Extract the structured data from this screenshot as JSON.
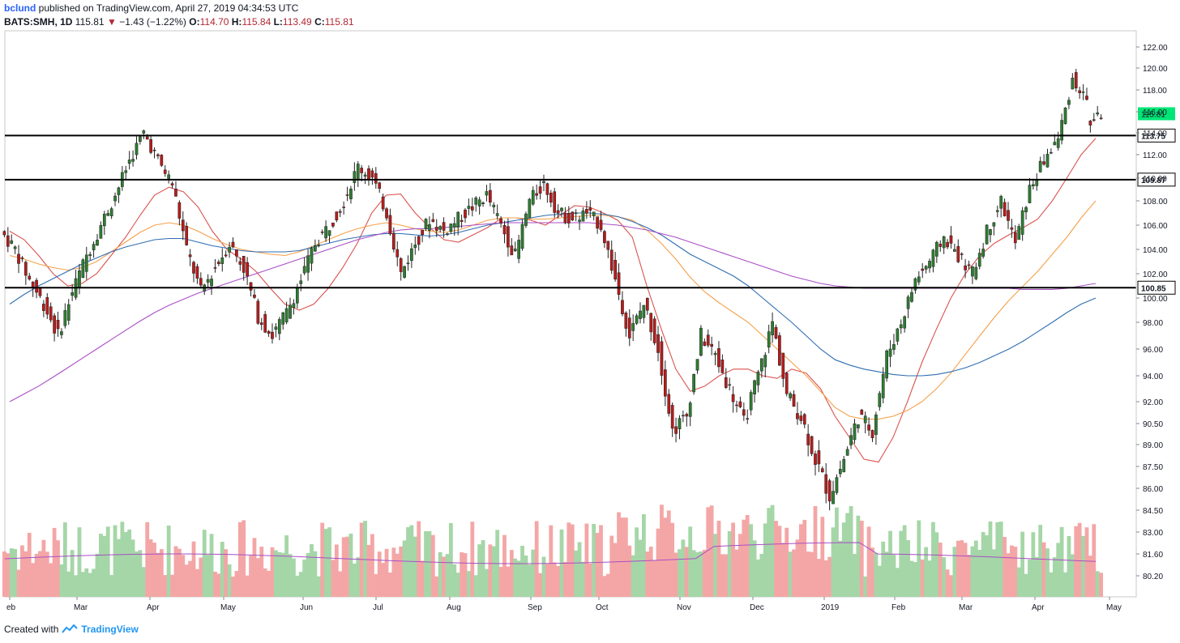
{
  "header": {
    "author": "bclund",
    "published_text": "published on TradingView.com, April 27, 2019 04:34:53 UTC",
    "symbol": "BATS:SMH, 1D",
    "last": "115.81",
    "change_arrow": "▼",
    "change": "−1.43 (−1.22%)",
    "open_label": "O:",
    "open": "114.70",
    "high_label": "H:",
    "high": "115.84",
    "low_label": "L:",
    "low": "113.49",
    "close_label": "C:",
    "close": "115.81"
  },
  "footer": {
    "created_with": "Created with",
    "brand": "TradingView"
  },
  "colors": {
    "up": "#2e7d32",
    "down": "#b71c1c",
    "vol_up": "#a5d6a7",
    "vol_down": "#f4a6a6",
    "ma_red": "#d9534f",
    "ma_orange": "#f5a04a",
    "ma_blue": "#2f6db3",
    "ma_purple": "#a94ec6",
    "price_tag": "#00e676"
  },
  "chart_data": {
    "type": "candlestick",
    "x_axis": [
      "eb",
      "Mar",
      "Apr",
      "May",
      "Jun",
      "Jul",
      "Aug",
      "Sep",
      "Oct",
      "Nov",
      "Dec",
      "2019",
      "Feb",
      "Mar",
      "Apr",
      "May"
    ],
    "y_axis_ticks": [
      "122.00",
      "120.00",
      "118.00",
      "116.00",
      "114.00",
      "112.00",
      "110.00",
      "108.00",
      "106.00",
      "104.00",
      "102.00",
      "100.00",
      "98.00",
      "96.00",
      "94.00",
      "92.00",
      "90.50",
      "89.00",
      "87.50",
      "86.00",
      "84.50",
      "83.00",
      "81.60",
      "80.20"
    ],
    "horizontal_lines": [
      {
        "value": 113.75,
        "label": "113.75"
      },
      {
        "value": 109.87,
        "label": "109.87"
      },
      {
        "value": 100.85,
        "label": "100.85"
      }
    ],
    "last_price": {
      "value": 115.81,
      "label": "115.81"
    },
    "candles_weekly_approx": [
      [
        105.5,
        104.0
      ],
      [
        104.0,
        101.5
      ],
      [
        101.5,
        99.5
      ],
      [
        99.5,
        97.0
      ],
      [
        97.0,
        100.5
      ],
      [
        100.5,
        103.5
      ],
      [
        103.5,
        106.0
      ],
      [
        106.0,
        108.5
      ],
      [
        108.5,
        111.5
      ],
      [
        111.5,
        114.0
      ],
      [
        114.0,
        111.5
      ],
      [
        111.5,
        109.5
      ],
      [
        109.5,
        104.0
      ],
      [
        104.0,
        100.5
      ],
      [
        100.5,
        102.5
      ],
      [
        102.5,
        104.5
      ],
      [
        104.5,
        102.5
      ],
      [
        102.5,
        98.5
      ],
      [
        98.5,
        97.0
      ],
      [
        97.0,
        98.8
      ],
      [
        98.8,
        101.5
      ],
      [
        101.5,
        104.5
      ],
      [
        104.5,
        106.0
      ],
      [
        106.0,
        108.0
      ],
      [
        108.0,
        111.0
      ],
      [
        111.0,
        110.0
      ],
      [
        110.0,
        107.0
      ],
      [
        107.0,
        102.0
      ],
      [
        102.0,
        104.5
      ],
      [
        104.5,
        106.5
      ],
      [
        106.5,
        105.5
      ],
      [
        105.5,
        106.5
      ],
      [
        106.5,
        107.5
      ],
      [
        107.5,
        108.5
      ],
      [
        108.5,
        106.0
      ],
      [
        106.0,
        103.5
      ],
      [
        103.5,
        108.0
      ],
      [
        108.0,
        109.5
      ],
      [
        109.5,
        107.0
      ],
      [
        107.0,
        106.5
      ],
      [
        106.5,
        107.0
      ],
      [
        107.0,
        106.0
      ],
      [
        106.0,
        101.5
      ],
      [
        101.5,
        97.0
      ],
      [
        97.0,
        99.5
      ],
      [
        99.5,
        96.0
      ],
      [
        96.0,
        90.0
      ],
      [
        90.0,
        91.0
      ],
      [
        91.0,
        97.0
      ],
      [
        97.0,
        95.5
      ],
      [
        95.5,
        93.0
      ],
      [
        93.0,
        90.5
      ],
      [
        90.5,
        94.0
      ],
      [
        94.0,
        98.0
      ],
      [
        98.0,
        92.5
      ],
      [
        92.5,
        91.0
      ],
      [
        91.0,
        88.0
      ],
      [
        88.0,
        85.5
      ],
      [
        85.5,
        88.0
      ],
      [
        88.0,
        91.0
      ],
      [
        91.0,
        90.0
      ],
      [
        90.0,
        95.5
      ],
      [
        95.5,
        98.0
      ],
      [
        98.0,
        101.5
      ],
      [
        101.5,
        103.0
      ],
      [
        103.0,
        105.0
      ],
      [
        105.0,
        103.5
      ],
      [
        103.5,
        102.0
      ],
      [
        102.0,
        105.5
      ],
      [
        105.5,
        108.0
      ],
      [
        108.0,
        104.5
      ],
      [
        104.5,
        109.0
      ],
      [
        109.0,
        111.5
      ],
      [
        111.5,
        113.5
      ],
      [
        113.5,
        119.0
      ],
      [
        119.0,
        117.0
      ],
      [
        114.7,
        115.81
      ]
    ],
    "moving_averages": [
      {
        "color_key": "ma_red",
        "values": [
          105.5,
          104.8,
          103.5,
          102.0,
          101.0,
          101.2,
          102.0,
          103.5,
          105.0,
          106.8,
          108.5,
          109.2,
          108.8,
          107.5,
          105.5,
          104.0,
          103.2,
          102.2,
          100.8,
          99.5,
          99.0,
          99.5,
          100.8,
          102.5,
          104.5,
          107.0,
          108.5,
          108.6,
          107.0,
          105.8,
          104.8,
          104.6,
          105.2,
          105.8,
          106.6,
          106.6,
          106.4,
          106.0,
          106.8,
          107.6,
          107.5,
          107.0,
          106.4,
          105.0,
          101.0,
          97.5,
          94.5,
          92.8,
          93.2,
          94.0,
          94.5,
          94.5,
          94.0,
          93.8,
          94.5,
          94.2,
          93.0,
          91.0,
          89.5,
          88.0,
          87.8,
          89.5,
          92.0,
          95.0,
          97.5,
          100.0,
          102.0,
          103.5,
          104.5,
          105.2,
          105.8,
          106.5,
          108.0,
          110.0,
          112.0,
          113.5
        ]
      },
      {
        "color_key": "ma_orange",
        "values": [
          103.5,
          103.2,
          102.8,
          102.5,
          102.3,
          102.5,
          103.0,
          103.8,
          104.6,
          105.4,
          106.0,
          106.2,
          106.0,
          105.5,
          104.9,
          104.4,
          104.0,
          103.8,
          103.6,
          103.5,
          103.8,
          104.3,
          104.8,
          105.3,
          105.7,
          106.0,
          106.2,
          106.0,
          105.7,
          105.5,
          105.4,
          105.6,
          106.0,
          106.4,
          106.6,
          106.6,
          106.5,
          106.5,
          106.6,
          106.7,
          106.8,
          106.8,
          106.7,
          106.4,
          105.6,
          104.5,
          103.2,
          101.7,
          100.5,
          99.6,
          98.8,
          98.0,
          97.0,
          96.0,
          95.0,
          94.0,
          92.8,
          91.6,
          91.0,
          90.8,
          90.8,
          91.0,
          91.4,
          92.0,
          93.0,
          94.2,
          95.6,
          97.0,
          98.4,
          99.8,
          101.0,
          102.2,
          103.6,
          105.0,
          106.6,
          108.0
        ]
      },
      {
        "color_key": "ma_blue",
        "values": [
          99.5,
          100.3,
          101.0,
          101.6,
          102.2,
          102.8,
          103.3,
          103.8,
          104.2,
          104.5,
          104.8,
          104.9,
          104.9,
          104.6,
          104.3,
          104.1,
          103.9,
          103.8,
          103.8,
          103.8,
          103.9,
          104.2,
          104.5,
          104.8,
          105.0,
          105.2,
          105.3,
          105.3,
          105.2,
          105.1,
          105.2,
          105.4,
          105.7,
          106.0,
          106.2,
          106.4,
          106.6,
          106.8,
          106.9,
          107.0,
          107.0,
          106.9,
          106.7,
          106.3,
          105.8,
          105.2,
          104.4,
          103.6,
          103.0,
          102.4,
          101.8,
          101.0,
          100.0,
          99.0,
          98.0,
          97.0,
          96.0,
          95.2,
          94.8,
          94.5,
          94.3,
          94.1,
          94.0,
          94.0,
          94.1,
          94.3,
          94.6,
          95.0,
          95.5,
          96.0,
          96.6,
          97.3,
          98.0,
          98.8,
          99.5,
          100.0
        ]
      },
      {
        "color_key": "ma_purple",
        "values": [
          92.0,
          92.6,
          93.2,
          93.9,
          94.6,
          95.3,
          96.0,
          96.7,
          97.4,
          98.1,
          98.8,
          99.4,
          99.9,
          100.4,
          100.8,
          101.2,
          101.6,
          102.0,
          102.4,
          102.8,
          103.2,
          103.6,
          104.0,
          104.4,
          104.8,
          105.1,
          105.4,
          105.6,
          105.7,
          105.7,
          105.8,
          105.9,
          106.0,
          106.1,
          106.2,
          106.2,
          106.2,
          106.2,
          106.2,
          106.2,
          106.2,
          106.1,
          106.0,
          105.8,
          105.6,
          105.3,
          105.0,
          104.6,
          104.2,
          103.8,
          103.4,
          103.0,
          102.6,
          102.2,
          101.8,
          101.5,
          101.2,
          101.0,
          100.9,
          100.8,
          100.8,
          100.8,
          100.8,
          100.8,
          100.8,
          100.8,
          100.8,
          100.8,
          100.8,
          100.8,
          100.7,
          100.7,
          100.7,
          100.8,
          101.0,
          101.2
        ]
      }
    ]
  }
}
